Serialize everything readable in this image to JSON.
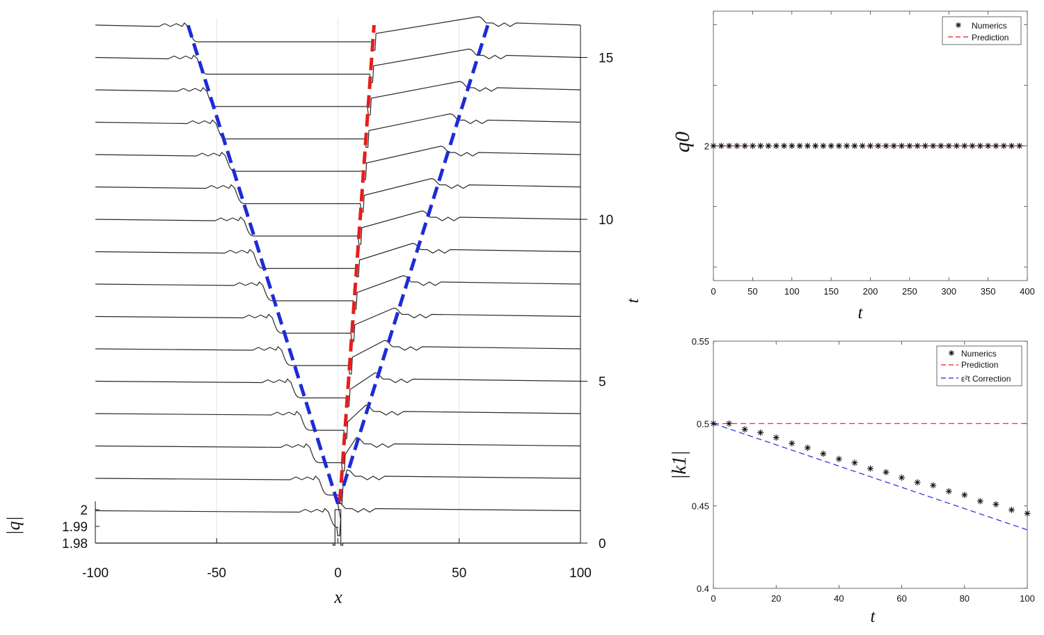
{
  "chart_data": [
    {
      "type": "line",
      "panel": "left",
      "xlabel": "x",
      "ylabel": "|q|",
      "right_label": "t",
      "xlim": [
        -100,
        100
      ],
      "xticks": [
        "-100",
        "-50",
        "0",
        "50",
        "100"
      ],
      "xtick_values": [
        -100,
        -50,
        0,
        50,
        100
      ],
      "yticks": [
        "2",
        "1.99",
        "1.98"
      ],
      "ytick_values": [
        2,
        1.99,
        1.98
      ],
      "tticks": [
        "15",
        "10",
        "5",
        "0"
      ],
      "ttick_values": [
        15,
        10,
        5,
        0
      ],
      "tlim": [
        0,
        16
      ],
      "waterfall_times": [
        0,
        1,
        2,
        3,
        4,
        5,
        6,
        7,
        8,
        9,
        10,
        11,
        12,
        13,
        14,
        15,
        16
      ],
      "left_edge": {
        "color": "#1f2bd6",
        "dashed": true,
        "x_start": 0,
        "x_end": -61.8,
        "t_start": 1,
        "t_end": 16
      },
      "right_edge": {
        "color": "#1f2bd6",
        "dashed": true,
        "x_start": 0,
        "x_end": 61.8,
        "t_start": 1,
        "t_end": 16
      },
      "center_curve": {
        "color": "#e51e1e",
        "dashed": true,
        "x_start": 0.8,
        "x_end": 14.9,
        "t_start": 1.5,
        "t_end": 16
      }
    },
    {
      "type": "scatter",
      "panel": "top-right",
      "xlabel": "t",
      "ylabel": "q0",
      "xlim": [
        0,
        400
      ],
      "ylim": [
        1,
        3
      ],
      "xticks": [
        "0",
        "50",
        "100",
        "150",
        "200",
        "250",
        "300",
        "350",
        "400"
      ],
      "xtick_values": [
        0,
        50,
        100,
        150,
        200,
        250,
        300,
        350,
        400
      ],
      "yticks": [
        "2"
      ],
      "ytick_values": [
        2
      ],
      "legend_position": "top-right",
      "series": [
        {
          "name": "Numerics",
          "marker": "*",
          "color": "#111111",
          "x": [
            0,
            10,
            20,
            30,
            40,
            50,
            60,
            70,
            80,
            90,
            100,
            110,
            120,
            130,
            140,
            150,
            160,
            170,
            180,
            190,
            200,
            210,
            220,
            230,
            240,
            250,
            260,
            270,
            280,
            290,
            300,
            310,
            320,
            330,
            340,
            350,
            360,
            370,
            380,
            390
          ],
          "y": [
            2,
            2,
            2,
            2,
            2,
            2,
            2,
            2,
            2,
            2,
            2,
            2,
            2,
            2,
            2,
            2,
            2,
            2,
            2,
            2,
            2,
            2,
            2,
            2,
            2,
            2,
            2,
            2,
            2,
            2,
            2,
            2,
            2,
            2,
            2,
            2,
            2,
            2,
            2,
            2
          ]
        },
        {
          "name": "Prediction",
          "line": "dashed",
          "color": "#e51e1e",
          "x": [
            0,
            400
          ],
          "y": [
            2,
            2
          ]
        }
      ]
    },
    {
      "type": "scatter",
      "panel": "bottom-right",
      "xlabel": "t",
      "ylabel": "|k1|",
      "xlim": [
        0,
        100
      ],
      "ylim": [
        0.4,
        0.55
      ],
      "xticks": [
        "0",
        "20",
        "40",
        "60",
        "80",
        "100"
      ],
      "xtick_values": [
        0,
        20,
        40,
        60,
        80,
        100
      ],
      "yticks": [
        "0.55",
        "0.5",
        "0.45",
        "0.4"
      ],
      "ytick_values": [
        0.55,
        0.5,
        0.45,
        0.4
      ],
      "legend_position": "top-right",
      "series": [
        {
          "name": "Numerics",
          "marker": "*",
          "color": "#111111",
          "x": [
            0,
            5,
            10,
            15,
            20,
            25,
            30,
            35,
            40,
            45,
            50,
            55,
            60,
            65,
            70,
            75,
            80,
            85,
            90,
            95,
            100
          ],
          "y": [
            0.5,
            0.5,
            0.4965,
            0.4945,
            0.4915,
            0.488,
            0.4853,
            0.4817,
            0.4785,
            0.4762,
            0.4727,
            0.4705,
            0.4672,
            0.4643,
            0.4625,
            0.4589,
            0.4567,
            0.4529,
            0.451,
            0.4476,
            0.4455
          ]
        },
        {
          "name": "Prediction",
          "line": "dashed",
          "color": "#e51e1e",
          "x": [
            0,
            100
          ],
          "y": [
            0.5,
            0.5
          ]
        },
        {
          "name": "ε²t Correction",
          "line": "dashed",
          "color": "#1f2bd6",
          "x": [
            0,
            100
          ],
          "y": [
            0.5,
            0.4355
          ]
        }
      ]
    }
  ]
}
